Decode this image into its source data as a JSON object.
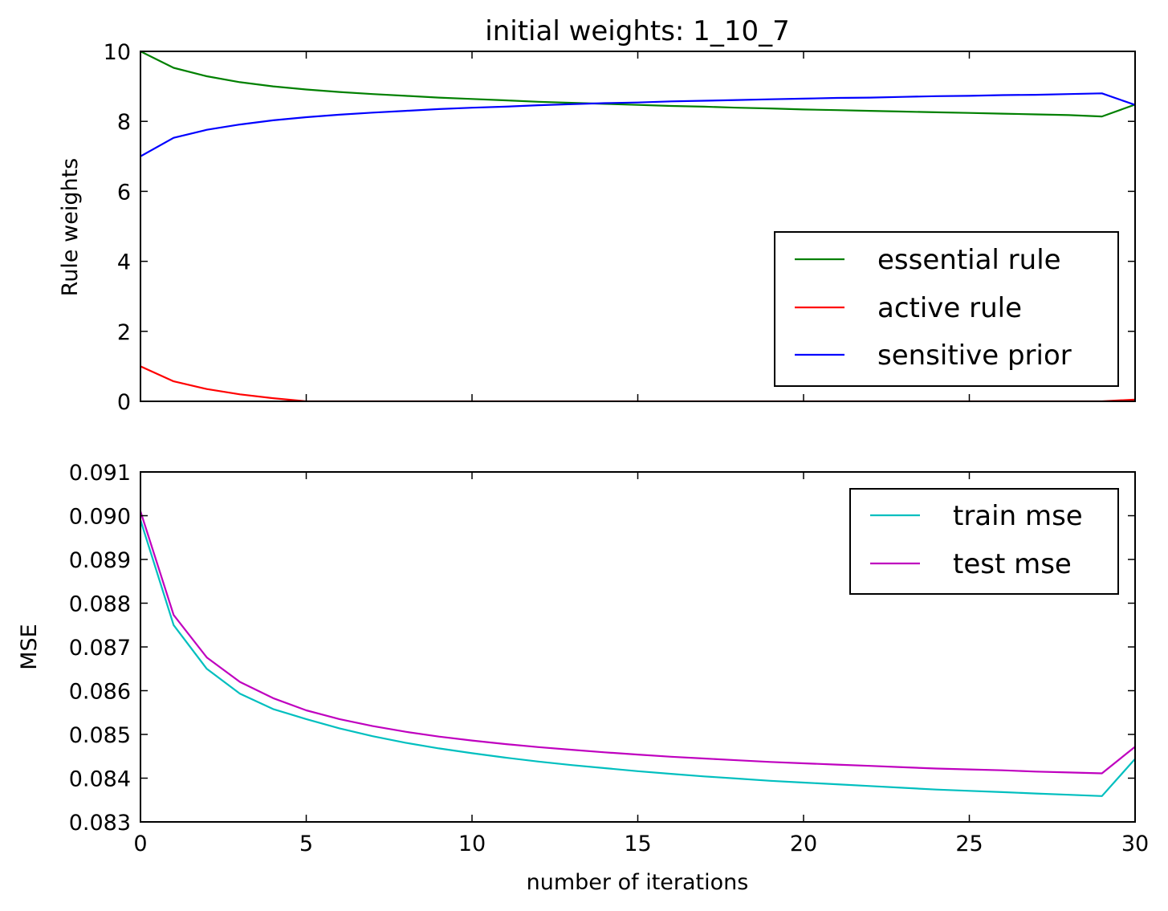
{
  "chart_data": [
    {
      "type": "line",
      "title": "initial weights: 1_10_7",
      "xlabel": "",
      "ylabel": "Rule weights",
      "xlim": [
        0,
        30
      ],
      "ylim": [
        0,
        10
      ],
      "xticks": [
        0,
        5,
        10,
        15,
        20,
        25,
        30
      ],
      "yticks": [
        0,
        2,
        4,
        6,
        8,
        10
      ],
      "ytick_labels": [
        "0",
        "2",
        "4",
        "6",
        "8",
        "10"
      ],
      "xtick_labels_visible": false,
      "grid": false,
      "legend_position": "lower-right",
      "series": [
        {
          "name": "essential rule",
          "color": "#008000",
          "x": [
            0,
            1,
            2,
            3,
            4,
            5,
            6,
            7,
            8,
            9,
            10,
            11,
            12,
            13,
            14,
            15,
            16,
            17,
            18,
            19,
            20,
            21,
            22,
            23,
            24,
            25,
            26,
            27,
            28,
            29,
            30
          ],
          "y": [
            10,
            9.53,
            9.29,
            9.12,
            9.0,
            8.91,
            8.84,
            8.78,
            8.73,
            8.68,
            8.64,
            8.6,
            8.56,
            8.53,
            8.5,
            8.47,
            8.44,
            8.42,
            8.39,
            8.37,
            8.34,
            8.32,
            8.3,
            8.28,
            8.26,
            8.24,
            8.22,
            8.2,
            8.18,
            8.14,
            8.48
          ]
        },
        {
          "name": "active rule",
          "color": "#ff0000",
          "x": [
            0,
            1,
            2,
            3,
            4,
            5,
            6,
            7,
            8,
            9,
            10,
            11,
            12,
            13,
            14,
            15,
            16,
            17,
            18,
            19,
            20,
            21,
            22,
            23,
            24,
            25,
            26,
            27,
            28,
            29,
            30
          ],
          "y": [
            1.0,
            0.57,
            0.35,
            0.2,
            0.09,
            0.0,
            0.0,
            0.0,
            0.0,
            0.0,
            0.0,
            0.0,
            0.0,
            0.0,
            0.0,
            0.0,
            0.0,
            0.0,
            0.0,
            0.0,
            0.0,
            0.0,
            0.0,
            0.0,
            0.0,
            0.0,
            0.0,
            0.0,
            0.0,
            0.0,
            0.05
          ]
        },
        {
          "name": "sensitive prior",
          "color": "#0000ff",
          "x": [
            0,
            1,
            2,
            3,
            4,
            5,
            6,
            7,
            8,
            9,
            10,
            11,
            12,
            13,
            14,
            15,
            16,
            17,
            18,
            19,
            20,
            21,
            22,
            23,
            24,
            25,
            26,
            27,
            28,
            29,
            30
          ],
          "y": [
            7.0,
            7.53,
            7.76,
            7.91,
            8.03,
            8.12,
            8.19,
            8.25,
            8.3,
            8.35,
            8.39,
            8.42,
            8.46,
            8.49,
            8.52,
            8.54,
            8.57,
            8.59,
            8.61,
            8.63,
            8.65,
            8.67,
            8.68,
            8.7,
            8.72,
            8.73,
            8.75,
            8.76,
            8.78,
            8.8,
            8.47
          ]
        }
      ]
    },
    {
      "type": "line",
      "title": "",
      "xlabel": "number of iterations",
      "ylabel": "MSE",
      "xlim": [
        0,
        30
      ],
      "ylim": [
        0.083,
        0.091
      ],
      "xticks": [
        0,
        5,
        10,
        15,
        20,
        25,
        30
      ],
      "xtick_labels": [
        "0",
        "5",
        "10",
        "15",
        "20",
        "25",
        "30"
      ],
      "yticks": [
        0.083,
        0.084,
        0.085,
        0.086,
        0.087,
        0.088,
        0.089,
        0.09,
        0.091
      ],
      "ytick_labels": [
        "0.083",
        "0.084",
        "0.085",
        "0.086",
        "0.087",
        "0.088",
        "0.089",
        "0.090",
        "0.091"
      ],
      "grid": false,
      "legend_position": "upper-right",
      "series": [
        {
          "name": "train mse",
          "color": "#00bfbf",
          "x": [
            0,
            1,
            2,
            3,
            4,
            5,
            6,
            7,
            8,
            9,
            10,
            11,
            12,
            13,
            14,
            15,
            16,
            17,
            18,
            19,
            20,
            21,
            22,
            23,
            24,
            25,
            26,
            27,
            28,
            29,
            30
          ],
          "y": [
            0.0899,
            0.0875,
            0.0865,
            0.08593,
            0.08558,
            0.08535,
            0.08514,
            0.08496,
            0.08481,
            0.08468,
            0.08457,
            0.08447,
            0.08438,
            0.0843,
            0.08423,
            0.08416,
            0.0841,
            0.08404,
            0.08399,
            0.08394,
            0.0839,
            0.08386,
            0.08382,
            0.08378,
            0.08374,
            0.08371,
            0.08368,
            0.08365,
            0.08362,
            0.08359,
            0.08444
          ]
        },
        {
          "name": "test mse",
          "color": "#bf00bf",
          "x": [
            0,
            1,
            2,
            3,
            4,
            5,
            6,
            7,
            8,
            9,
            10,
            11,
            12,
            13,
            14,
            15,
            16,
            17,
            18,
            19,
            20,
            21,
            22,
            23,
            24,
            25,
            26,
            27,
            28,
            29,
            30
          ],
          "y": [
            0.0901,
            0.08773,
            0.08676,
            0.0862,
            0.08583,
            0.08555,
            0.08535,
            0.08519,
            0.08506,
            0.08495,
            0.08486,
            0.08478,
            0.08471,
            0.08465,
            0.08459,
            0.08454,
            0.08449,
            0.08445,
            0.08441,
            0.08437,
            0.08434,
            0.08431,
            0.08428,
            0.08425,
            0.08422,
            0.0842,
            0.08418,
            0.08415,
            0.08413,
            0.08411,
            0.08472
          ]
        }
      ]
    }
  ]
}
